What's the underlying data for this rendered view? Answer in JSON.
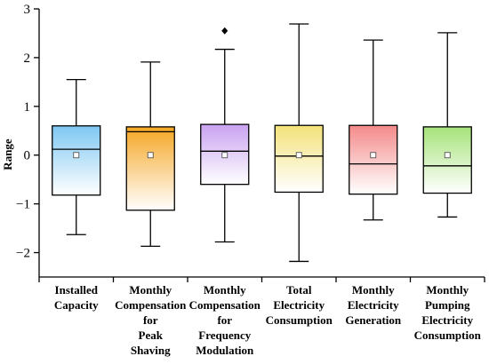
{
  "chart_data": {
    "type": "box",
    "title": "",
    "xlabel": "",
    "ylabel": "Range",
    "ylim": [
      -2.5,
      3
    ],
    "yticks": [
      -2,
      -1,
      0,
      1,
      2,
      3
    ],
    "ytick_labels": [
      "−2",
      "−1",
      "0",
      "1",
      "2",
      "3"
    ],
    "grid": false,
    "categories": [
      {
        "lines": [
          "Installed",
          "Capacity"
        ]
      },
      {
        "lines": [
          "Monthly",
          "Compensation",
          "for",
          "Peak",
          "Shaving"
        ]
      },
      {
        "lines": [
          "Monthly",
          "Compensation",
          "for",
          "Frequency",
          "Modulation"
        ]
      },
      {
        "lines": [
          "Total",
          "Electricity",
          "Consumption"
        ]
      },
      {
        "lines": [
          "Monthly",
          "Electricity",
          "Generation"
        ]
      },
      {
        "lines": [
          "Monthly",
          "Pumping",
          "Electricity",
          "Consumption"
        ]
      }
    ],
    "boxes": [
      {
        "whisker_low": -1.63,
        "q1": -0.82,
        "median": 0.12,
        "q3": 0.6,
        "whisker_high": 1.55,
        "mean": 0,
        "outliers": [],
        "color": "#7ec8f2"
      },
      {
        "whisker_low": -1.87,
        "q1": -1.13,
        "median": 0.48,
        "q3": 0.58,
        "whisker_high": 1.91,
        "mean": 0,
        "outliers": [],
        "color": "#f5a623"
      },
      {
        "whisker_low": -1.78,
        "q1": -0.6,
        "median": 0.08,
        "q3": 0.63,
        "whisker_high": 2.17,
        "mean": 0,
        "outliers": [
          2.55
        ],
        "color": "#c9a2f0"
      },
      {
        "whisker_low": -2.18,
        "q1": -0.76,
        "median": -0.02,
        "q3": 0.61,
        "whisker_high": 2.69,
        "mean": 0,
        "outliers": [],
        "color": "#f3e27a"
      },
      {
        "whisker_low": -1.33,
        "q1": -0.8,
        "median": -0.18,
        "q3": 0.61,
        "whisker_high": 2.36,
        "mean": 0,
        "outliers": [],
        "color": "#f48a8a"
      },
      {
        "whisker_low": -1.27,
        "q1": -0.78,
        "median": -0.22,
        "q3": 0.58,
        "whisker_high": 2.51,
        "mean": 0,
        "outliers": [],
        "color": "#a6e37a"
      }
    ]
  }
}
